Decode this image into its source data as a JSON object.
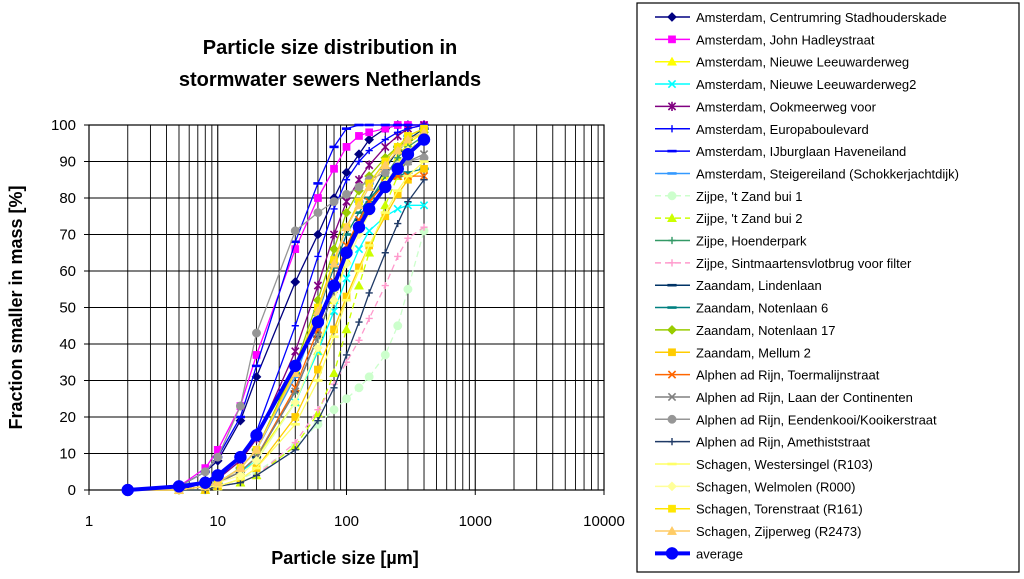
{
  "chart_data": {
    "type": "line",
    "title_lines": [
      "Particle size distribution in",
      "stormwater sewers Netherlands"
    ],
    "xlabel": "Particle size [µm]",
    "ylabel": "Fraction smaller in mass [%]",
    "x_scale": "log",
    "xlim": [
      1,
      10000
    ],
    "ylim": [
      0,
      100
    ],
    "x_ticks": [
      1,
      10,
      100,
      1000,
      10000
    ],
    "x_tick_labels": [
      "1",
      "10",
      "100",
      "1000",
      "10000"
    ],
    "y_ticks": [
      0,
      10,
      20,
      30,
      40,
      50,
      60,
      70,
      80,
      90,
      100
    ],
    "y_tick_labels": [
      "0",
      "10",
      "20",
      "30",
      "40",
      "50",
      "60",
      "70",
      "80",
      "90",
      "100"
    ],
    "grid": true,
    "legend_position": "right",
    "x": [
      2,
      5,
      8,
      10,
      15,
      20,
      40,
      60,
      80,
      100,
      125,
      150,
      200,
      250,
      300,
      400
    ],
    "series": [
      {
        "name": "Amsterdam, Centrumring Stadhouderskade",
        "color": "#000080",
        "marker": "diamond",
        "dash": "",
        "values": [
          0,
          1,
          5,
          8,
          19,
          31,
          57,
          70,
          80,
          87,
          92,
          96,
          99,
          100,
          100,
          100
        ]
      },
      {
        "name": "Amsterdam, John Hadleystraat",
        "color": "#ff00ff",
        "marker": "square",
        "dash": "",
        "values": [
          0,
          1,
          6,
          11,
          23,
          37,
          66,
          80,
          88,
          94,
          97,
          98,
          99,
          100,
          100,
          100
        ]
      },
      {
        "name": "Amsterdam, Nieuwe Leeuwarderweg",
        "color": "#ffff00",
        "marker": "triangle",
        "dash": "",
        "values": [
          0,
          0,
          1,
          2,
          5,
          9,
          24,
          38,
          52,
          63,
          72,
          78,
          86,
          91,
          95,
          98
        ]
      },
      {
        "name": "Amsterdam, Nieuwe Leeuwarderweg2",
        "color": "#00ffff",
        "marker": "x",
        "dash": "",
        "values": [
          0,
          0,
          1,
          2,
          5,
          8,
          24,
          38,
          49,
          58,
          66,
          71,
          75,
          77,
          78,
          78
        ]
      },
      {
        "name": "Amsterdam, Ookmeerweg voor",
        "color": "#800080",
        "marker": "star",
        "dash": "",
        "values": [
          0,
          0,
          2,
          3,
          8,
          14,
          38,
          56,
          70,
          79,
          85,
          89,
          94,
          97,
          99,
          100
        ]
      },
      {
        "name": "Amsterdam, Europaboulevard",
        "color": "#0000ff",
        "marker": "plus",
        "dash": "",
        "values": [
          0,
          0,
          2,
          3,
          9,
          16,
          45,
          64,
          77,
          85,
          90,
          93,
          96,
          98,
          99,
          100
        ]
      },
      {
        "name": "Amsterdam, IJburglaan Haveneiland",
        "color": "#0000ff",
        "marker": "dash",
        "dash": "",
        "values": [
          0,
          1,
          5,
          9,
          20,
          34,
          68,
          84,
          94,
          99,
          100,
          100,
          100,
          100,
          100,
          100
        ]
      },
      {
        "name": "Amsterdam, Steigereiland (Schokkerjachtdijk)",
        "color": "#3399ff",
        "marker": "dash",
        "dash": "",
        "values": [
          0,
          0,
          1,
          2,
          6,
          11,
          31,
          48,
          62,
          72,
          79,
          84,
          90,
          94,
          97,
          99
        ]
      },
      {
        "name": "Zijpe, 't Zand bui 1",
        "color": "#ccffcc",
        "marker": "circle",
        "dash": "6,4",
        "values": [
          0,
          0,
          0,
          1,
          3,
          5,
          12,
          18,
          22,
          25,
          28,
          31,
          37,
          45,
          55,
          71
        ]
      },
      {
        "name": "Zijpe, 't Zand bui 2",
        "color": "#ccff00",
        "marker": "triangle",
        "dash": "6,4",
        "values": [
          0,
          0,
          0,
          1,
          2,
          4,
          12,
          21,
          32,
          44,
          56,
          65,
          78,
          86,
          92,
          98
        ]
      },
      {
        "name": "Zijpe, Hoenderpark",
        "color": "#339966",
        "marker": "plus",
        "dash": "",
        "values": [
          0,
          0,
          1,
          2,
          5,
          9,
          27,
          42,
          55,
          65,
          73,
          79,
          86,
          91,
          94,
          97
        ]
      },
      {
        "name": "Zijpe, Sintmaartensvlotbrug voor filter",
        "color": "#ff99cc",
        "marker": "plus",
        "dash": "6,4",
        "values": [
          0,
          0,
          0,
          1,
          2,
          4,
          13,
          22,
          29,
          35,
          41,
          47,
          56,
          64,
          69,
          72
        ]
      },
      {
        "name": "Zaandam, Lindenlaan",
        "color": "#003366",
        "marker": "dash",
        "dash": "",
        "values": [
          0,
          0,
          1,
          2,
          5,
          9,
          27,
          42,
          55,
          66,
          74,
          80,
          88,
          93,
          96,
          99
        ]
      },
      {
        "name": "Zaandam, Notenlaan 6",
        "color": "#008080",
        "marker": "dash",
        "dash": "",
        "values": [
          0,
          0,
          1,
          2,
          6,
          11,
          32,
          49,
          61,
          70,
          76,
          80,
          84,
          86,
          87,
          88
        ]
      },
      {
        "name": "Zaandam, Notenlaan 17",
        "color": "#99cc00",
        "marker": "diamond",
        "dash": "",
        "values": [
          0,
          0,
          1,
          2,
          6,
          11,
          34,
          52,
          66,
          76,
          82,
          86,
          91,
          94,
          96,
          98
        ]
      },
      {
        "name": "Zaandam, Mellum 2",
        "color": "#ffcc00",
        "marker": "square",
        "dash": "",
        "values": [
          0,
          0,
          0,
          1,
          3,
          6,
          20,
          33,
          44,
          53,
          61,
          67,
          75,
          81,
          85,
          88
        ]
      },
      {
        "name": "Alphen ad Rijn, Toermalijnstraat",
        "color": "#ff6600",
        "marker": "x",
        "dash": "",
        "values": [
          0,
          0,
          1,
          2,
          5,
          9,
          28,
          44,
          57,
          67,
          74,
          79,
          84,
          86,
          86,
          86
        ]
      },
      {
        "name": "Alphen ad Rijn, Laan der Continenten",
        "color": "#808080",
        "marker": "x",
        "dash": "",
        "values": [
          0,
          0,
          1,
          2,
          5,
          9,
          27,
          42,
          55,
          65,
          72,
          77,
          83,
          87,
          90,
          92
        ]
      },
      {
        "name": "Alphen ad Rijn, Eendenkooi/Kooikerstraat",
        "color": "#969696",
        "marker": "circle",
        "dash": "",
        "values": [
          0,
          1,
          5,
          9,
          23,
          43,
          71,
          76,
          79,
          81,
          83,
          85,
          87,
          89,
          90,
          91
        ]
      },
      {
        "name": "Alphen ad Rijn, Amethiststraat",
        "color": "#1f3a66",
        "marker": "plus",
        "dash": "",
        "values": [
          0,
          0,
          0,
          1,
          2,
          4,
          11,
          19,
          28,
          37,
          46,
          54,
          65,
          73,
          79,
          85
        ]
      },
      {
        "name": "Schagen, Westersingel (R103)",
        "color": "#ffff66",
        "marker": "dash",
        "dash": "",
        "values": [
          0,
          0,
          1,
          1,
          3,
          6,
          18,
          30,
          42,
          52,
          60,
          67,
          76,
          82,
          86,
          90
        ]
      },
      {
        "name": "Schagen, Welmolen (R000)",
        "color": "#ffff99",
        "marker": "diamond",
        "dash": "",
        "values": [
          0,
          0,
          1,
          2,
          4,
          8,
          24,
          39,
          52,
          62,
          70,
          76,
          84,
          89,
          93,
          96
        ]
      },
      {
        "name": "Schagen, Torenstraat (R161)",
        "color": "#ffe600",
        "marker": "square",
        "dash": "",
        "values": [
          0,
          0,
          1,
          2,
          6,
          11,
          33,
          50,
          63,
          72,
          79,
          84,
          90,
          94,
          97,
          99
        ]
      },
      {
        "name": "Schagen, Zijperweg (R2473)",
        "color": "#ffcc66",
        "marker": "triangle",
        "dash": "",
        "values": [
          0,
          0,
          1,
          2,
          6,
          11,
          32,
          49,
          62,
          72,
          78,
          83,
          89,
          93,
          96,
          98
        ]
      },
      {
        "name": "average",
        "color": "#0000ff",
        "marker": "bigcircle",
        "dash": "",
        "width": 4,
        "values": [
          0,
          1,
          2,
          4,
          9,
          15,
          34,
          46,
          56,
          65,
          72,
          77,
          83,
          88,
          92,
          96
        ]
      }
    ]
  }
}
